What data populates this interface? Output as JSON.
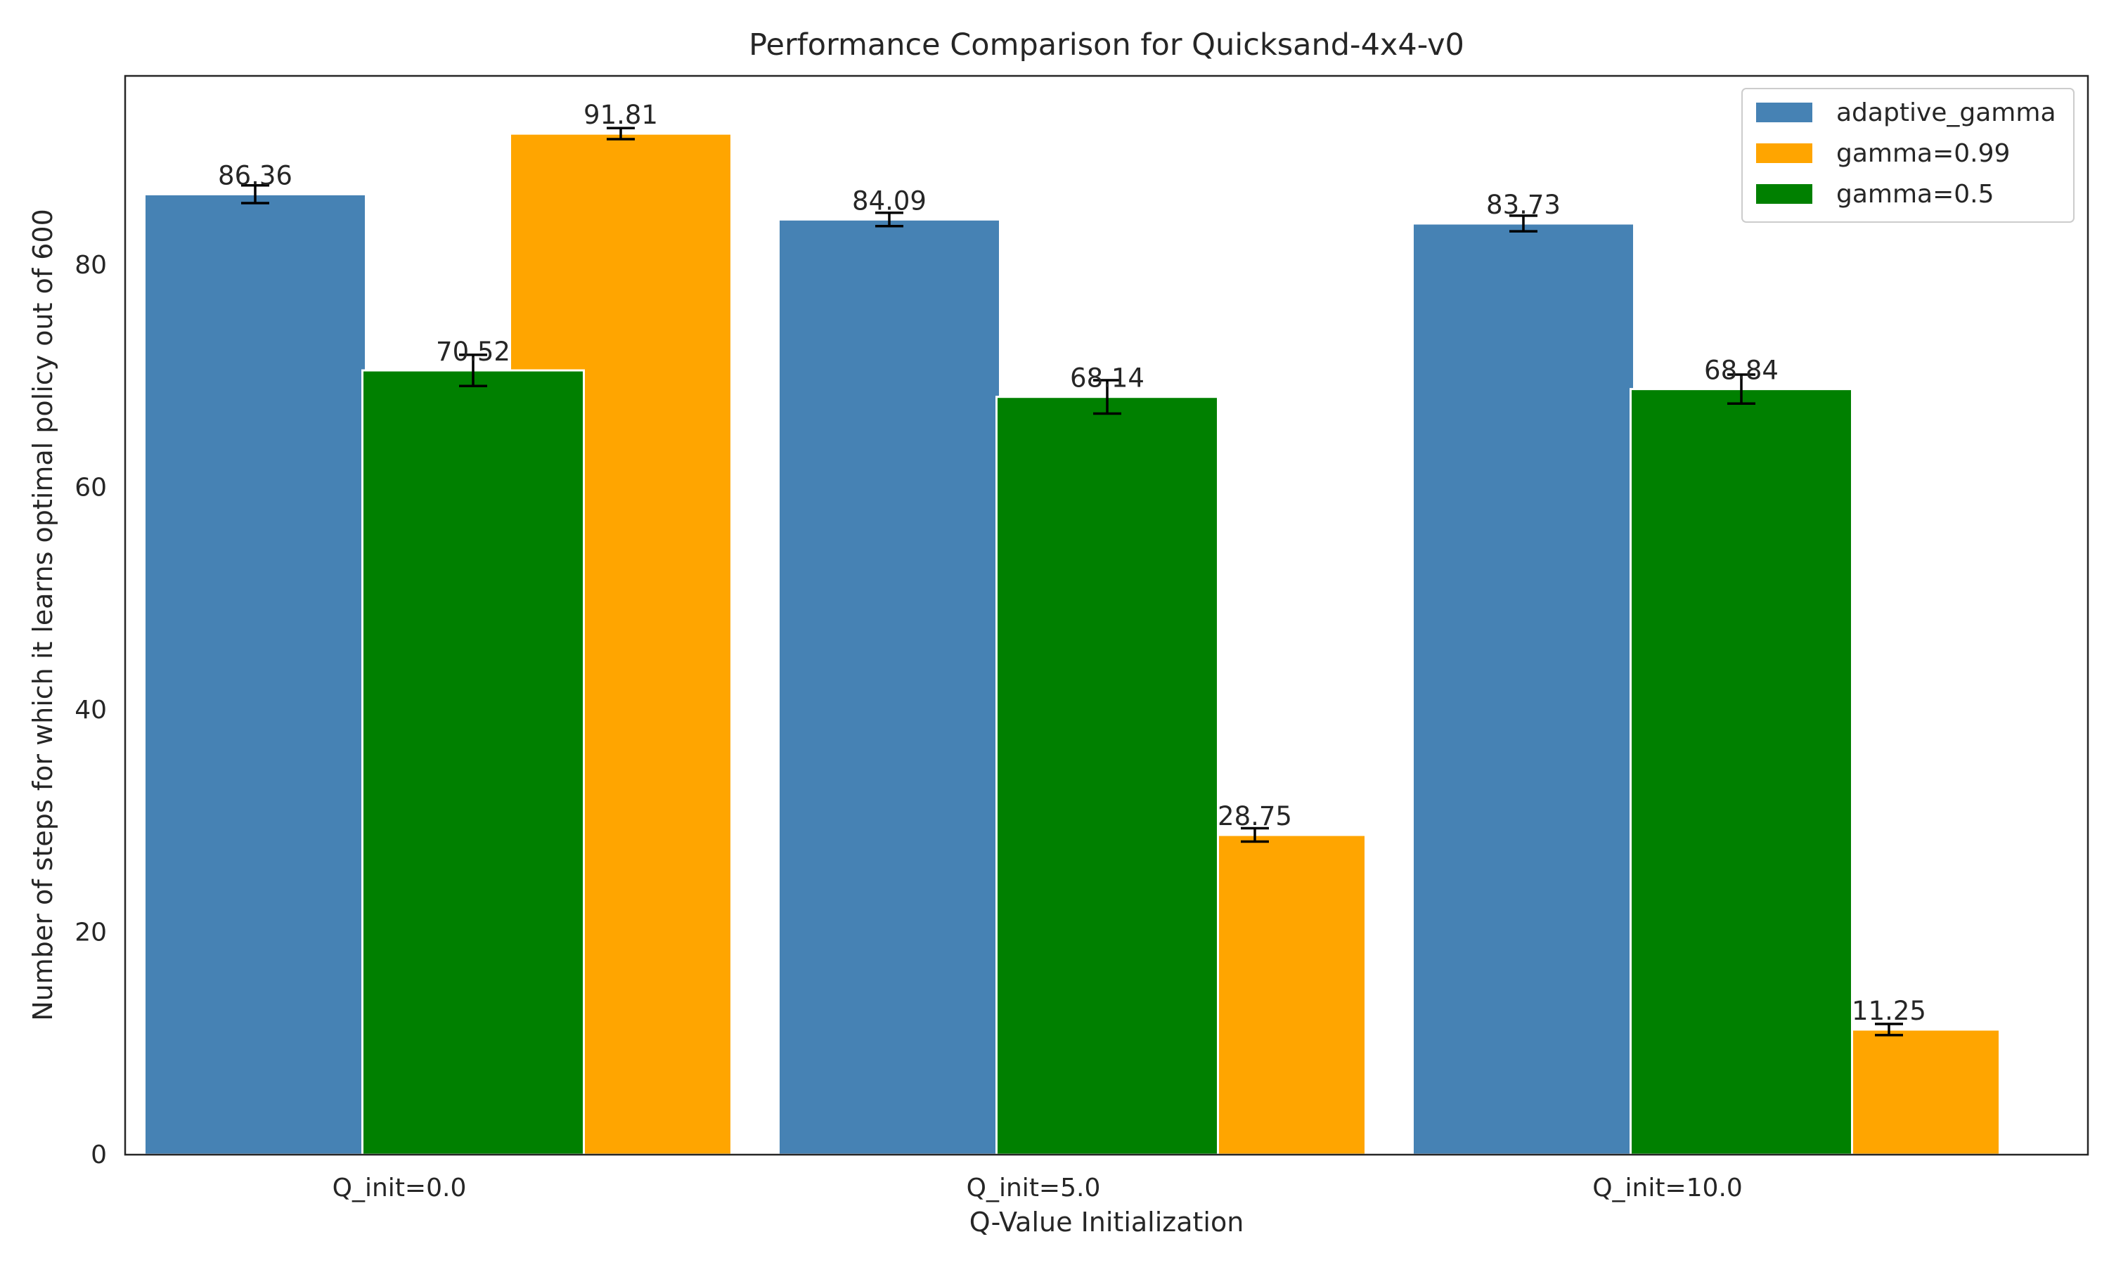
{
  "chart_data": {
    "type": "bar",
    "title": "Performance Comparison for Quicksand-4x4-v0",
    "xlabel": "Q-Value Initialization",
    "ylabel": "Number of steps for which it learns optimal policy out of 600",
    "categories": [
      "Q_init=0.0",
      "Q_init=5.0",
      "Q_init=10.0"
    ],
    "ylim": [
      0,
      97
    ],
    "yticks": [
      0,
      20,
      40,
      60,
      80
    ],
    "grid": false,
    "legend_position": "top-right",
    "series": [
      {
        "name": "adaptive_gamma",
        "color": "#4682b4",
        "values": [
          86.36,
          84.09,
          83.73
        ],
        "errors": [
          0.8,
          0.6,
          0.7
        ],
        "labels": [
          "86.36",
          "84.09",
          "83.73"
        ]
      },
      {
        "name": "gamma=0.99",
        "color": "#ffa500",
        "values": [
          91.81,
          28.75,
          11.25
        ],
        "errors": [
          0.5,
          0.6,
          0.5
        ],
        "labels": [
          "91.81",
          "28.75",
          "11.25"
        ]
      },
      {
        "name": "gamma=0.5",
        "color": "#008000",
        "values": [
          70.52,
          68.14,
          68.84
        ],
        "errors": [
          1.4,
          1.5,
          1.3
        ],
        "labels": [
          "70.52",
          "68.14",
          "68.84"
        ]
      }
    ]
  }
}
